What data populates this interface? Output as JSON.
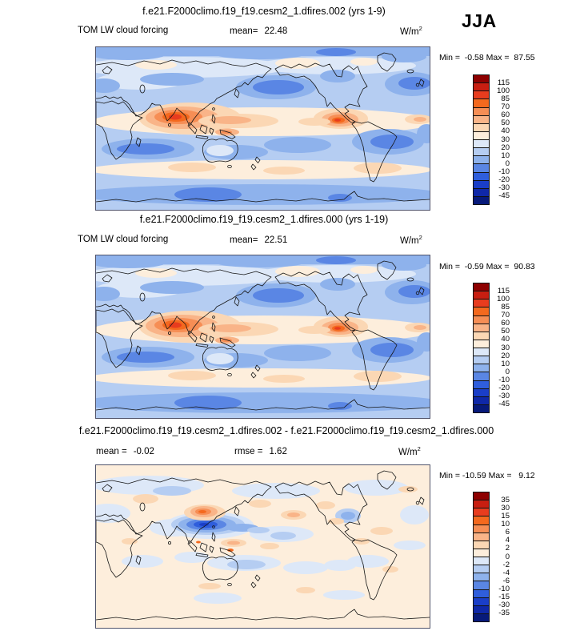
{
  "season": "JJA",
  "colorbar_palette": [
    "#8E0000",
    "#C81E11",
    "#E83C1E",
    "#F4691E",
    "#F68E55",
    "#F9B488",
    "#FBD7B4",
    "#FDEEDC",
    "#DDE8F8",
    "#B5CDF2",
    "#8EB2EC",
    "#5A86E4",
    "#2F5EDC",
    "#1A3EC8",
    "#0F28A8",
    "#071A7A"
  ],
  "panels": [
    {
      "title": "f.e21.F2000climo.f19_f19.cesm2_1.dfires.002 (yrs 1-9)",
      "variable": "TOM LW cloud forcing",
      "stats": [
        {
          "label": "mean=",
          "value": "22.48"
        }
      ],
      "units": "W/m",
      "units_exponent": "2",
      "minmax": "Min =  -0.58 Max =  87.55",
      "levels": [
        "115",
        "100",
        "85",
        "70",
        "60",
        "50",
        "40",
        "30",
        "20",
        "10",
        "0",
        "-10",
        "-20",
        "-30",
        "-45"
      ]
    },
    {
      "title": "f.e21.F2000climo.f19_f19.cesm2_1.dfires.000 (yrs 1-19)",
      "variable": "TOM LW cloud forcing",
      "stats": [
        {
          "label": "mean=",
          "value": "22.51"
        }
      ],
      "units": "W/m",
      "units_exponent": "2",
      "minmax": "Min =  -0.59 Max =  90.83",
      "levels": [
        "115",
        "100",
        "85",
        "70",
        "60",
        "50",
        "40",
        "30",
        "20",
        "10",
        "0",
        "-10",
        "-20",
        "-30",
        "-45"
      ]
    },
    {
      "title": "f.e21.F2000climo.f19_f19.cesm2_1.dfires.002 - f.e21.F2000climo.f19_f19.cesm2_1.dfires.000",
      "variable": "",
      "stats": [
        {
          "label": "mean =",
          "value": "-0.02"
        },
        {
          "label": "rmse =",
          "value": "1.62"
        }
      ],
      "units": "W/m",
      "units_exponent": "2",
      "minmax": "Min = -10.59 Max =   9.12",
      "levels": [
        "35",
        "30",
        "15",
        "10",
        "6",
        "4",
        "2",
        "0",
        "-2",
        "-4",
        "-6",
        "-10",
        "-15",
        "-30",
        "-35"
      ]
    }
  ],
  "chart_data": [
    {
      "type": "heatmap",
      "subtype": "filled-contour world map",
      "projection": "equirectangular, lon 0-360E, lat 90N-90S",
      "title": "f.e21.F2000climo.f19_f19.cesm2_1.dfires.002 (yrs 1-9)",
      "field": "TOM LW cloud forcing",
      "season": "JJA",
      "units": "W/m^2",
      "mean": 22.48,
      "min": -0.58,
      "max": 87.55,
      "contour_levels": [
        -45,
        -30,
        -20,
        -10,
        0,
        10,
        20,
        30,
        40,
        50,
        60,
        70,
        85,
        100,
        115
      ],
      "colormap": "16-level blue-to-red (see colorbar_palette, reds = high values)",
      "legend_position": "right",
      "notable_features": [
        "maxima 60-85 W/m^2 over India / Bay of Bengal and over Central America-Colombia",
        "warm band 30-50 W/m^2 along ITCZ and tropical west Pacific",
        "10-20 W/m^2 over subtropical oceans (blue bands)",
        "pale 30-40 W/m^2 band over Southern Ocean storm track",
        "blue polar bands at both high latitudes"
      ]
    },
    {
      "type": "heatmap",
      "subtype": "filled-contour world map",
      "projection": "equirectangular, lon 0-360E, lat 90N-90S",
      "title": "f.e21.F2000climo.f19_f19.cesm2_1.dfires.000 (yrs 1-19)",
      "field": "TOM LW cloud forcing",
      "season": "JJA",
      "units": "W/m^2",
      "mean": 22.51,
      "min": -0.59,
      "max": 90.83,
      "contour_levels": [
        -45,
        -30,
        -20,
        -10,
        0,
        10,
        20,
        30,
        40,
        50,
        60,
        70,
        85,
        100,
        115
      ],
      "colormap": "16-level blue-to-red (see colorbar_palette, reds = high values)",
      "legend_position": "right",
      "notable_features": [
        "pattern nearly identical to case dfires.002",
        "maxima over India / Bay of Bengal and Central America-Colombia",
        "warm ITCZ band, blue subtropical oceans, pale Southern Ocean band"
      ]
    },
    {
      "type": "heatmap",
      "subtype": "difference map (case 002 minus case 000)",
      "projection": "equirectangular, lon 0-360E, lat 90N-90S",
      "title": "f.e21.F2000climo.f19_f19.cesm2_1.dfires.002 - f.e21.F2000climo.f19_f19.cesm2_1.dfires.000",
      "field": "TOM LW cloud forcing difference",
      "season": "JJA",
      "units": "W/m^2",
      "mean": -0.02,
      "rmse": 1.62,
      "min": -10.59,
      "max": 9.12,
      "contour_levels": [
        -35,
        -30,
        -15,
        -10,
        -6,
        -4,
        -2,
        0,
        2,
        4,
        6,
        10,
        15,
        30,
        35
      ],
      "colormap": "16-level blue-to-red (see colorbar_palette)",
      "legend_position": "right",
      "notable_features": [
        "differences mostly within +/-2 W/m^2 (cream / pale blue)",
        "dipole over East Asia: positive 6-10 over eastern China/Korea, negative -6 to -15 over South China Sea / Philippines",
        "small negative patch over Gulf of Mexico / Central America",
        "scattered weak +/-2-4 patches over tropics and midlatitudes"
      ]
    }
  ]
}
